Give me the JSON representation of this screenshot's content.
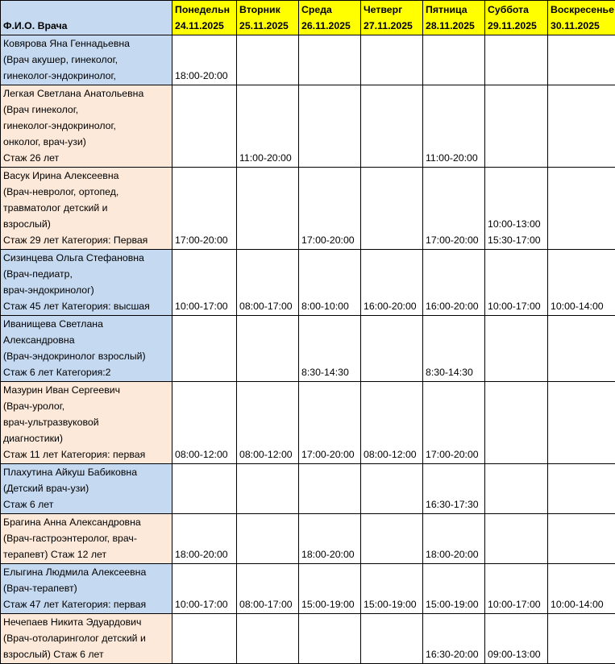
{
  "header": {
    "fio_label": "Ф.И.О. Врача",
    "days": [
      {
        "day": "Понедельн",
        "date": "24.11.2025"
      },
      {
        "day": "Вторник",
        "date": "25.11.2025"
      },
      {
        "day": "Среда",
        "date": "26.11.2025"
      },
      {
        "day": "Четверг",
        "date": "27.11.2025"
      },
      {
        "day": "Пятница",
        "date": "28.11.2025"
      },
      {
        "day": "Суббота",
        "date": "29.11.2025"
      },
      {
        "day": "Воскресенье",
        "date": "30.11.2025"
      }
    ]
  },
  "colors": {
    "header": "#ffff00",
    "blue": "#c5d9f1",
    "peach": "#fde9d9"
  },
  "doctors": [
    {
      "color": "blue",
      "lines": [
        "Ковярова Яна Геннадьевна",
        "(Врач акушер, гинеколог,",
        "гинеколог-эндокринолог,"
      ],
      "schedule": [
        [
          "18:00-20:00"
        ],
        [],
        [],
        [],
        [],
        [],
        []
      ]
    },
    {
      "color": "peach",
      "lines": [
        "Легкая Светлана Анатольевна",
        "(Врач гинеколог,",
        "гинеколог-эндокринолог,",
        "онколог, врач-узи)",
        "Стаж 26 лет"
      ],
      "schedule": [
        [],
        [
          "11:00-20:00"
        ],
        [],
        [],
        [
          "11:00-20:00"
        ],
        [],
        []
      ]
    },
    {
      "color": "peach",
      "lines": [
        "Васук Ирина Алексеевна",
        "(Врач-невролог, ортопед,",
        "травматолог детский и",
        "взрослый)",
        "Стаж 29 лет Категория: Первая"
      ],
      "schedule": [
        [
          "17:00-20:00"
        ],
        [],
        [
          "17:00-20:00"
        ],
        [],
        [
          "17:00-20:00"
        ],
        [
          "10:00-13:00",
          "15:30-17:00"
        ],
        []
      ]
    },
    {
      "color": "blue",
      "lines": [
        "Сизинцева Ольга Стефановна",
        "(Врач-педиатр,",
        "врач-эндокринолог)",
        "Стаж 45 лет Категория: высшая"
      ],
      "schedule": [
        [
          "10:00-17:00"
        ],
        [
          "08:00-17:00"
        ],
        [
          "8:00-10:00"
        ],
        [
          "16:00-20:00"
        ],
        [
          "16:00-20:00"
        ],
        [
          "10:00-17:00"
        ],
        [
          "10:00-14:00"
        ]
      ]
    },
    {
      "color": "blue",
      "lines": [
        "Иванищева Светлана",
        "Александровна",
        "(Врач-эндокринолог взрослый)",
        "Стаж 6 лет Категория:2"
      ],
      "schedule": [
        [],
        [],
        [
          "8:30-14:30"
        ],
        [],
        [
          "8:30-14:30"
        ],
        [],
        []
      ]
    },
    {
      "color": "peach",
      "lines": [
        "Мазурин Иван Сергеевич",
        "(Врач-уролог,",
        "врач-ультразвуковой",
        "диагностики)",
        "Стаж 11 лет Категория: первая"
      ],
      "schedule": [
        [
          "08:00-12:00"
        ],
        [
          "08:00-12:00"
        ],
        [
          "17:00-20:00"
        ],
        [
          "08:00-12:00"
        ],
        [
          "17:00-20:00"
        ],
        [],
        []
      ]
    },
    {
      "color": "blue",
      "lines": [
        "Плахутина Айкуш Бабиковна",
        "(Детский врач-узи)",
        "Стаж 6 лет"
      ],
      "schedule": [
        [],
        [],
        [],
        [],
        [
          "16:30-17:30"
        ],
        [],
        []
      ]
    },
    {
      "color": "peach",
      "lines": [
        "Брагина Анна Александровна",
        "(Врач-гастроэнтеролог, врач-",
        "терапевт) Стаж 12 лет"
      ],
      "schedule": [
        [
          "18:00-20:00"
        ],
        [],
        [
          "18:00-20:00"
        ],
        [],
        [
          "18:00-20:00"
        ],
        [],
        []
      ]
    },
    {
      "color": "blue",
      "lines": [
        "Елыгина Людмила Алексеевна",
        "(Врач-терапевт)",
        "Стаж 47 лет Категория: первая"
      ],
      "schedule": [
        [
          "10:00-17:00"
        ],
        [
          "08:00-17:00"
        ],
        [
          "15:00-19:00"
        ],
        [
          "15:00-19:00"
        ],
        [
          "15:00-19:00"
        ],
        [
          "10:00-17:00"
        ],
        [
          "10:00-14:00"
        ]
      ]
    },
    {
      "color": "peach",
      "lines": [
        "Нечепаев Никита Эдуардович",
        "(Врач-отоларинголог детский и",
        "взрослый) Стаж 6 лет"
      ],
      "schedule": [
        [],
        [],
        [],
        [],
        [
          "16:30-20:00"
        ],
        [
          "09:00-13:00"
        ],
        []
      ]
    }
  ]
}
